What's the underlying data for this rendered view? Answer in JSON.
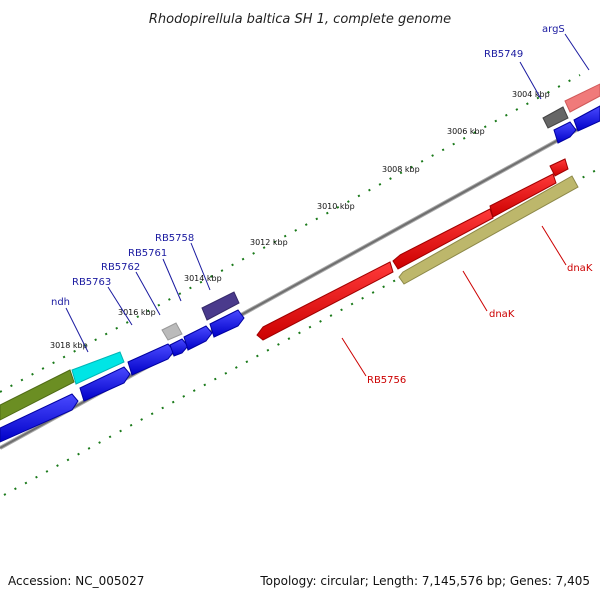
{
  "title": "Rhodopirellula baltica SH 1, complete genome",
  "ticks": [
    "3004 kbp",
    "3006 kbp",
    "3008 kbp",
    "3010 kbp",
    "3012 kbp",
    "3014 kbp",
    "3016 kbp",
    "3018 kbp"
  ],
  "genes": {
    "forward": [
      "argS",
      "RB5749",
      "RB5758",
      "RB5761",
      "RB5762",
      "RB5763",
      "ndh"
    ],
    "reverse": [
      "dnaK",
      "dnaK",
      "RB5756"
    ]
  },
  "footer": {
    "accession": "Accession: NC_005027",
    "summary": "Topology: circular; Length: 7,145,576 bp; Genes: 7,405"
  },
  "colors": {
    "forward_cds": "#0000ee",
    "reverse_cds": "#ee0000",
    "backbone": "#808080",
    "ticks": "#1a7a1a"
  }
}
